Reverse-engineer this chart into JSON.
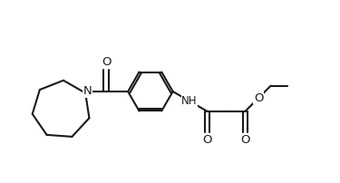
{
  "bg_color": "#ffffff",
  "line_color": "#1a1a1a",
  "line_width": 1.5,
  "figsize": [
    3.75,
    2.02
  ],
  "dpi": 100,
  "font_size": 8.5,
  "xlim": [
    0,
    9.5
  ],
  "ylim": [
    0,
    5.1
  ]
}
